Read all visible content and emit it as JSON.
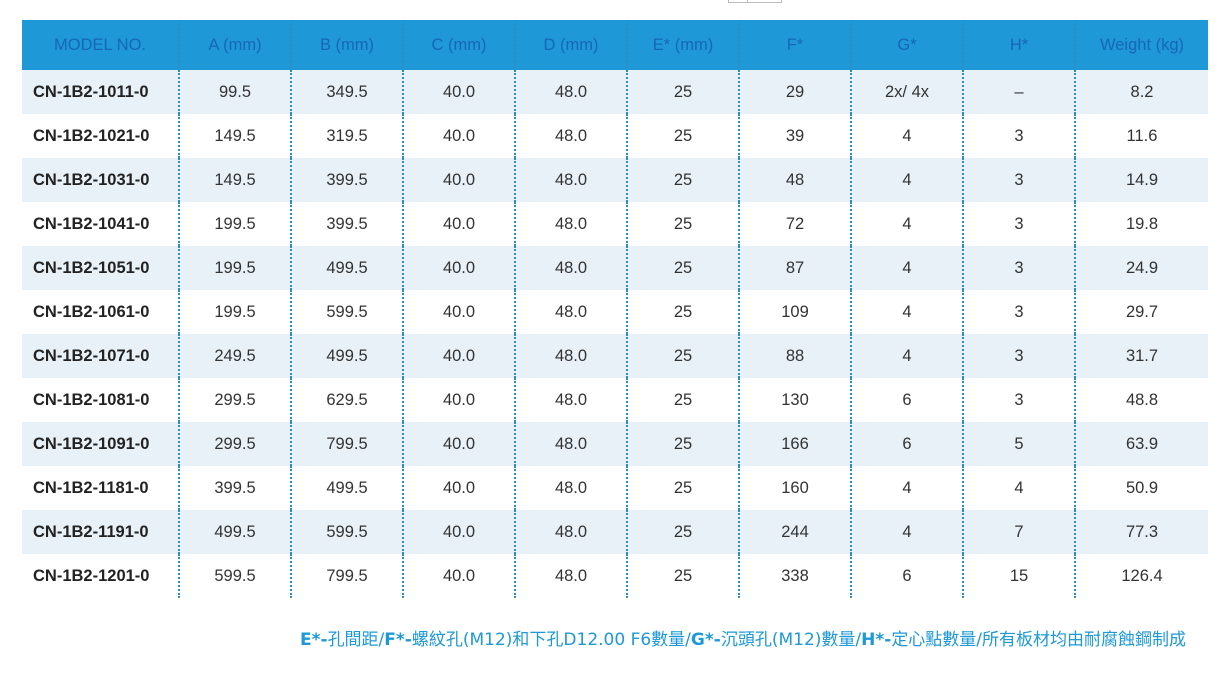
{
  "table": {
    "headers": [
      "MODEL NO.",
      "A (mm)",
      "B (mm)",
      "C (mm)",
      "D (mm)",
      "E* (mm)",
      "F*",
      "G*",
      "H*",
      "Weight (kg)"
    ],
    "rows": [
      [
        "CN-1B2-1011-0",
        "99.5",
        "349.5",
        "40.0",
        "48.0",
        "25",
        "29",
        "2x/ 4x",
        "–",
        "8.2"
      ],
      [
        "CN-1B2-1021-0",
        "149.5",
        "319.5",
        "40.0",
        "48.0",
        "25",
        "39",
        "4",
        "3",
        "11.6"
      ],
      [
        "CN-1B2-1031-0",
        "149.5",
        "399.5",
        "40.0",
        "48.0",
        "25",
        "48",
        "4",
        "3",
        "14.9"
      ],
      [
        "CN-1B2-1041-0",
        "199.5",
        "399.5",
        "40.0",
        "48.0",
        "25",
        "72",
        "4",
        "3",
        "19.8"
      ],
      [
        "CN-1B2-1051-0",
        "199.5",
        "499.5",
        "40.0",
        "48.0",
        "25",
        "87",
        "4",
        "3",
        "24.9"
      ],
      [
        "CN-1B2-1061-0",
        "199.5",
        "599.5",
        "40.0",
        "48.0",
        "25",
        "109",
        "4",
        "3",
        "29.7"
      ],
      [
        "CN-1B2-1071-0",
        "249.5",
        "499.5",
        "40.0",
        "48.0",
        "25",
        "88",
        "4",
        "3",
        "31.7"
      ],
      [
        "CN-1B2-1081-0",
        "299.5",
        "629.5",
        "40.0",
        "48.0",
        "25",
        "130",
        "6",
        "3",
        "48.8"
      ],
      [
        "CN-1B2-1091-0",
        "299.5",
        "799.5",
        "40.0",
        "48.0",
        "25",
        "166",
        "6",
        "5",
        "63.9"
      ],
      [
        "CN-1B2-1181-0",
        "399.5",
        "499.5",
        "40.0",
        "48.0",
        "25",
        "160",
        "4",
        "4",
        "50.9"
      ],
      [
        "CN-1B2-1191-0",
        "499.5",
        "599.5",
        "40.0",
        "48.0",
        "25",
        "244",
        "4",
        "7",
        "77.3"
      ],
      [
        "CN-1B2-1201-0",
        "599.5",
        "799.5",
        "40.0",
        "48.0",
        "25",
        "338",
        "6",
        "15",
        "126.4"
      ]
    ]
  },
  "footnote": {
    "parts": [
      {
        "key": "E*-",
        "text": "孔間距/"
      },
      {
        "key": "F*-",
        "text": "螺紋孔(M12)和下孔D12.00 F6數量/"
      },
      {
        "key": "G*-",
        "text": "沉頭孔(M12)數量/"
      },
      {
        "key": "H*-",
        "text": "定心點數量/所有板材均由耐腐蝕鋼制成"
      }
    ]
  },
  "colors": {
    "header_bg": "#1e98d6",
    "header_text": "#1767b8",
    "row_shade": "#e8f0f8",
    "footnote": "#1e98d6"
  }
}
